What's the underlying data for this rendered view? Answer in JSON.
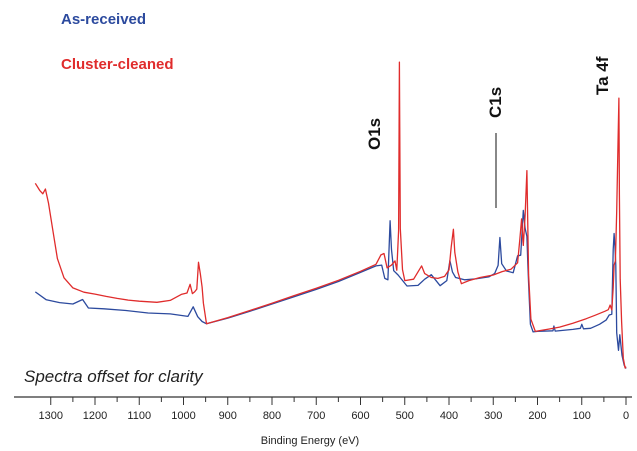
{
  "chart_data": {
    "type": "line",
    "xlabel": "Binding Energy (eV)",
    "ylabel": "",
    "x_reversed": true,
    "xlim": [
      1335,
      0
    ],
    "ylim": [
      0,
      100
    ],
    "grid": false,
    "legend_placement": "top-left",
    "x_ticks": [
      1300,
      1200,
      1100,
      1000,
      900,
      800,
      700,
      600,
      500,
      400,
      300,
      200,
      100,
      0
    ],
    "annotation": "Spectra offset for clarity",
    "peak_labels": [
      {
        "text": "O1s",
        "x": 533
      },
      {
        "text": "C1s",
        "x": 285
      },
      {
        "text": "Ta 4f",
        "x": 26
      }
    ],
    "series": [
      {
        "name": "As-received",
        "color": "#2c4a9e",
        "points": [
          [
            1335,
            35.5
          ],
          [
            1310,
            32.7
          ],
          [
            1280,
            31.7
          ],
          [
            1250,
            31.2
          ],
          [
            1228,
            32.8
          ],
          [
            1215,
            29.8
          ],
          [
            1180,
            29.5
          ],
          [
            1130,
            28.9
          ],
          [
            1080,
            28.0
          ],
          [
            1030,
            27.7
          ],
          [
            990,
            26.8
          ],
          [
            978,
            30.2
          ],
          [
            968,
            26.7
          ],
          [
            958,
            25.0
          ],
          [
            948,
            24.2
          ],
          [
            900,
            26.2
          ],
          [
            850,
            28.6
          ],
          [
            800,
            31.2
          ],
          [
            750,
            33.8
          ],
          [
            700,
            36.4
          ],
          [
            650,
            39.2
          ],
          [
            600,
            42.4
          ],
          [
            565,
            44.7
          ],
          [
            552,
            45.0
          ],
          [
            545,
            40.3
          ],
          [
            538,
            39.8
          ],
          [
            533,
            60.7
          ],
          [
            530,
            50.5
          ],
          [
            525,
            43.0
          ],
          [
            515,
            41.5
          ],
          [
            495,
            37.6
          ],
          [
            470,
            37.8
          ],
          [
            455,
            40.0
          ],
          [
            440,
            41.6
          ],
          [
            420,
            37.7
          ],
          [
            405,
            39.5
          ],
          [
            398,
            46.6
          ],
          [
            392,
            42.5
          ],
          [
            385,
            40.6
          ],
          [
            365,
            39.8
          ],
          [
            340,
            40.1
          ],
          [
            310,
            40.8
          ],
          [
            297,
            42.0
          ],
          [
            289,
            44.9
          ],
          [
            285,
            54.8
          ],
          [
            281,
            45.5
          ],
          [
            270,
            42.9
          ],
          [
            255,
            42.3
          ],
          [
            245,
            48.3
          ],
          [
            238,
            48.5
          ],
          [
            232,
            64.4
          ],
          [
            228,
            58.0
          ],
          [
            224,
            55.2
          ],
          [
            222,
            45.6
          ],
          [
            220,
            38.5
          ],
          [
            216,
            24.0
          ],
          [
            210,
            21.3
          ],
          [
            200,
            21.5
          ],
          [
            165,
            21.7
          ],
          [
            163,
            23.4
          ],
          [
            160,
            21.6
          ],
          [
            120,
            22.2
          ],
          [
            103,
            22.6
          ],
          [
            100,
            24.0
          ],
          [
            96,
            22.4
          ],
          [
            80,
            22.6
          ],
          [
            60,
            24.0
          ],
          [
            45,
            25.5
          ],
          [
            38,
            27.3
          ],
          [
            32,
            27.6
          ],
          [
            29,
            50.5
          ],
          [
            27,
            56.2
          ],
          [
            25,
            52.0
          ],
          [
            23,
            45.0
          ],
          [
            21,
            21.0
          ],
          [
            17,
            14.8
          ],
          [
            14,
            20.3
          ],
          [
            9,
            13.0
          ],
          [
            4,
            9.5
          ],
          [
            0,
            8.3
          ]
        ]
      },
      {
        "name": "Cluster-cleaned",
        "color": "#e02c2c",
        "points": [
          [
            1335,
            74.0
          ],
          [
            1325,
            71.5
          ],
          [
            1318,
            70.3
          ],
          [
            1312,
            72.0
          ],
          [
            1305,
            67.0
          ],
          [
            1295,
            57.0
          ],
          [
            1285,
            47.3
          ],
          [
            1270,
            40.5
          ],
          [
            1250,
            36.9
          ],
          [
            1225,
            35.4
          ],
          [
            1200,
            34.7
          ],
          [
            1175,
            33.9
          ],
          [
            1150,
            33.2
          ],
          [
            1125,
            32.6
          ],
          [
            1100,
            32.2
          ],
          [
            1060,
            31.8
          ],
          [
            1030,
            32.5
          ],
          [
            1005,
            34.6
          ],
          [
            992,
            35.1
          ],
          [
            985,
            38.2
          ],
          [
            980,
            34.9
          ],
          [
            975,
            35.5
          ],
          [
            970,
            36.5
          ],
          [
            966,
            46.0
          ],
          [
            962,
            42.0
          ],
          [
            958,
            37.2
          ],
          [
            955,
            31.5
          ],
          [
            948,
            24.2
          ],
          [
            900,
            26.4
          ],
          [
            850,
            28.9
          ],
          [
            800,
            31.5
          ],
          [
            750,
            34.2
          ],
          [
            700,
            36.8
          ],
          [
            650,
            39.6
          ],
          [
            600,
            42.8
          ],
          [
            565,
            45.3
          ],
          [
            554,
            48.6
          ],
          [
            547,
            49.1
          ],
          [
            540,
            44.0
          ],
          [
            530,
            45.0
          ],
          [
            522,
            46.5
          ],
          [
            518,
            43.2
          ],
          [
            514,
            57.2
          ],
          [
            512,
            117.0
          ],
          [
            510,
            58.0
          ],
          [
            505,
            43.4
          ],
          [
            500,
            39.5
          ],
          [
            480,
            40.0
          ],
          [
            462,
            44.7
          ],
          [
            455,
            42.0
          ],
          [
            440,
            40.6
          ],
          [
            425,
            40.3
          ],
          [
            410,
            41.0
          ],
          [
            400,
            43.3
          ],
          [
            395,
            51.4
          ],
          [
            390,
            57.7
          ],
          [
            387,
            49.5
          ],
          [
            380,
            42.5
          ],
          [
            372,
            38.4
          ],
          [
            355,
            39.5
          ],
          [
            330,
            40.6
          ],
          [
            300,
            41.5
          ],
          [
            280,
            42.7
          ],
          [
            260,
            43.5
          ],
          [
            245,
            45.8
          ],
          [
            240,
            54.0
          ],
          [
            236,
            61.4
          ],
          [
            232,
            52.0
          ],
          [
            228,
            62.5
          ],
          [
            224,
            78.5
          ],
          [
            220,
            41.6
          ],
          [
            215,
            25.8
          ],
          [
            205,
            21.5
          ],
          [
            175,
            22.3
          ],
          [
            150,
            23.0
          ],
          [
            120,
            24.4
          ],
          [
            90,
            26.0
          ],
          [
            70,
            27.2
          ],
          [
            48,
            28.6
          ],
          [
            40,
            29.2
          ],
          [
            36,
            30.8
          ],
          [
            32,
            29.1
          ],
          [
            29,
            37.0
          ],
          [
            27,
            45.0
          ],
          [
            24,
            46.5
          ],
          [
            21,
            64.0
          ],
          [
            18,
            88.0
          ],
          [
            16,
            104.2
          ],
          [
            15,
            70.0
          ],
          [
            13,
            40.0
          ],
          [
            10,
            25.0
          ],
          [
            6,
            12.0
          ],
          [
            2,
            8.5
          ],
          [
            0,
            9.0
          ]
        ]
      }
    ]
  }
}
